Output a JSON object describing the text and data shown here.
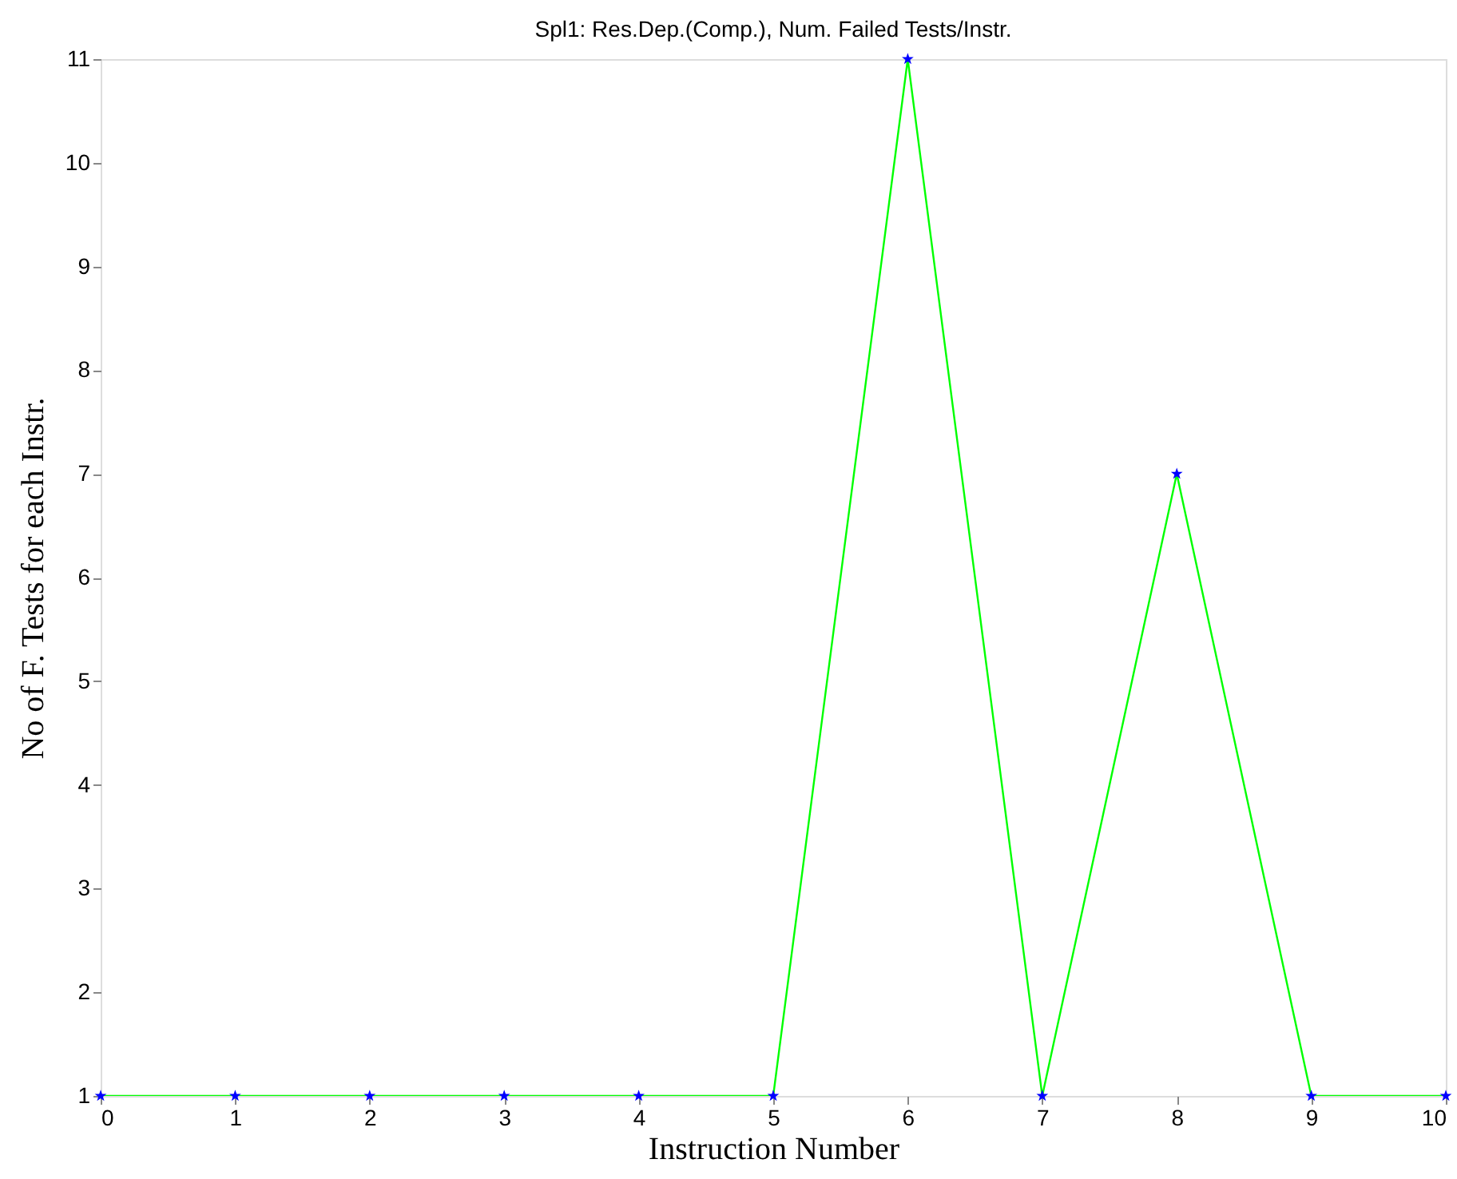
{
  "chart_data": {
    "type": "line",
    "title": "Spl1: Res.Dep.(Comp.), Num. Failed Tests/Instr.",
    "xlabel": "Instruction Number",
    "ylabel": "No of  F. Tests  for  each  Instr.",
    "x": [
      0,
      1,
      2,
      3,
      4,
      5,
      6,
      7,
      8,
      9,
      10
    ],
    "series": [
      {
        "color": "#00ff00",
        "marker": "none",
        "values": [
          1,
          1,
          1,
          1,
          1,
          1,
          11,
          1,
          7,
          1,
          1
        ]
      },
      {
        "type": "scatter",
        "color": "#0000ff",
        "marker": "star",
        "values": [
          1,
          1,
          1,
          1,
          1,
          1,
          11,
          1,
          7,
          1,
          1
        ]
      }
    ],
    "xlim": [
      0,
      10
    ],
    "xticks": [
      0,
      1,
      2,
      3,
      4,
      5,
      6,
      7,
      8,
      9,
      10
    ],
    "ylim": [
      1,
      11
    ],
    "yticks": [
      1,
      2,
      3,
      4,
      5,
      6,
      7,
      8,
      9,
      10,
      11
    ],
    "grid": false
  }
}
